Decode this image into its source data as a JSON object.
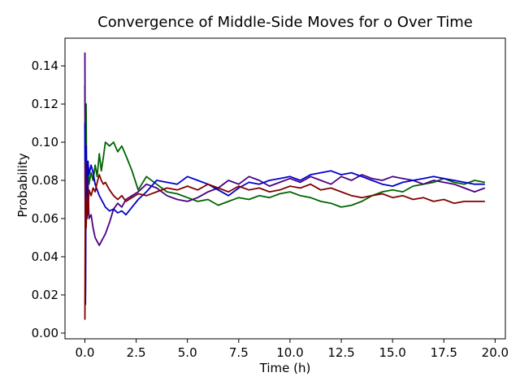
{
  "chart_data": {
    "type": "line",
    "title": "Convergence of Middle-Side Moves for o Over Time",
    "xlabel": "Time (h)",
    "ylabel": "Probability",
    "xlim": [
      -0.97,
      20.5
    ],
    "ylim": [
      -0.003,
      0.1545
    ],
    "xticks": [
      0.0,
      2.5,
      5.0,
      7.5,
      10.0,
      12.5,
      15.0,
      17.5,
      20.0
    ],
    "xtick_labels": [
      "0.0",
      "2.5",
      "5.0",
      "7.5",
      "10.0",
      "12.5",
      "15.0",
      "17.5",
      "20.0"
    ],
    "yticks": [
      0.0,
      0.02,
      0.04,
      0.06,
      0.08,
      0.1,
      0.12,
      0.14
    ],
    "ytick_labels": [
      "0.00",
      "0.02",
      "0.04",
      "0.06",
      "0.08",
      "0.10",
      "0.12",
      "0.14"
    ],
    "grid": false,
    "legend": "none",
    "series": [
      {
        "color": "#006400",
        "x": [
          0.0,
          0.03,
          0.06,
          0.1,
          0.15,
          0.2,
          0.3,
          0.4,
          0.5,
          0.6,
          0.7,
          0.8,
          0.9,
          1.0,
          1.2,
          1.4,
          1.6,
          1.8,
          2.0,
          2.3,
          2.6,
          3.0,
          3.5,
          4.0,
          4.5,
          5.0,
          5.5,
          6.0,
          6.5,
          7.0,
          7.5,
          8.0,
          8.5,
          9.0,
          9.5,
          10.0,
          10.5,
          11.0,
          11.5,
          12.0,
          12.5,
          13.0,
          13.5,
          14.0,
          14.5,
          15.0,
          15.5,
          16.0,
          16.5,
          17.0,
          17.5,
          18.0,
          18.5,
          19.0,
          19.5
        ],
        "y": [
          0.13,
          0.07,
          0.12,
          0.06,
          0.09,
          0.078,
          0.084,
          0.08,
          0.088,
          0.082,
          0.094,
          0.085,
          0.092,
          0.1,
          0.098,
          0.1,
          0.095,
          0.098,
          0.093,
          0.085,
          0.075,
          0.082,
          0.078,
          0.074,
          0.073,
          0.071,
          0.069,
          0.07,
          0.067,
          0.069,
          0.071,
          0.07,
          0.072,
          0.071,
          0.073,
          0.074,
          0.072,
          0.071,
          0.069,
          0.068,
          0.066,
          0.067,
          0.069,
          0.072,
          0.074,
          0.075,
          0.074,
          0.077,
          0.078,
          0.079,
          0.081,
          0.079,
          0.078,
          0.08,
          0.079
        ]
      },
      {
        "color": "#4B0082",
        "x": [
          0.0,
          0.03,
          0.06,
          0.1,
          0.15,
          0.2,
          0.3,
          0.4,
          0.5,
          0.6,
          0.7,
          0.8,
          0.9,
          1.0,
          1.2,
          1.4,
          1.6,
          1.8,
          2.0,
          2.3,
          2.6,
          3.0,
          3.5,
          4.0,
          4.5,
          5.0,
          5.5,
          6.0,
          6.5,
          7.0,
          7.5,
          8.0,
          8.5,
          9.0,
          9.5,
          10.0,
          10.5,
          11.0,
          11.5,
          12.0,
          12.5,
          13.0,
          13.5,
          14.0,
          14.5,
          15.0,
          15.5,
          16.0,
          16.5,
          17.0,
          17.5,
          18.0,
          18.5,
          19.0,
          19.5
        ],
        "y": [
          0.147,
          0.02,
          0.09,
          0.06,
          0.08,
          0.06,
          0.062,
          0.055,
          0.05,
          0.048,
          0.046,
          0.048,
          0.05,
          0.052,
          0.058,
          0.065,
          0.068,
          0.066,
          0.07,
          0.072,
          0.074,
          0.078,
          0.076,
          0.072,
          0.07,
          0.069,
          0.071,
          0.074,
          0.076,
          0.08,
          0.078,
          0.082,
          0.08,
          0.077,
          0.079,
          0.081,
          0.079,
          0.082,
          0.08,
          0.078,
          0.082,
          0.08,
          0.083,
          0.081,
          0.08,
          0.082,
          0.081,
          0.08,
          0.078,
          0.08,
          0.079,
          0.078,
          0.076,
          0.074,
          0.076
        ]
      },
      {
        "color": "#0000CD",
        "x": [
          0.0,
          0.03,
          0.06,
          0.1,
          0.15,
          0.2,
          0.3,
          0.4,
          0.5,
          0.6,
          0.7,
          0.8,
          0.9,
          1.0,
          1.2,
          1.4,
          1.6,
          1.8,
          2.0,
          2.3,
          2.6,
          3.0,
          3.5,
          4.0,
          4.5,
          5.0,
          5.5,
          6.0,
          6.5,
          7.0,
          7.5,
          8.0,
          8.5,
          9.0,
          9.5,
          10.0,
          10.5,
          11.0,
          11.5,
          12.0,
          12.5,
          13.0,
          13.5,
          14.0,
          14.5,
          15.0,
          15.5,
          16.0,
          16.5,
          17.0,
          17.5,
          18.0,
          18.5,
          19.0,
          19.5
        ],
        "y": [
          0.11,
          0.015,
          0.098,
          0.072,
          0.09,
          0.083,
          0.088,
          0.084,
          0.078,
          0.075,
          0.072,
          0.07,
          0.068,
          0.066,
          0.064,
          0.065,
          0.063,
          0.064,
          0.062,
          0.066,
          0.07,
          0.074,
          0.08,
          0.079,
          0.078,
          0.082,
          0.08,
          0.078,
          0.075,
          0.072,
          0.076,
          0.079,
          0.078,
          0.08,
          0.081,
          0.082,
          0.08,
          0.083,
          0.084,
          0.085,
          0.083,
          0.084,
          0.082,
          0.08,
          0.078,
          0.077,
          0.079,
          0.08,
          0.081,
          0.082,
          0.081,
          0.08,
          0.079,
          0.078,
          0.078
        ]
      },
      {
        "color": "#800000",
        "x": [
          0.0,
          0.03,
          0.06,
          0.1,
          0.15,
          0.2,
          0.3,
          0.4,
          0.5,
          0.6,
          0.7,
          0.8,
          0.9,
          1.0,
          1.2,
          1.4,
          1.6,
          1.8,
          2.0,
          2.3,
          2.6,
          3.0,
          3.5,
          4.0,
          4.5,
          5.0,
          5.5,
          6.0,
          6.5,
          7.0,
          7.5,
          8.0,
          8.5,
          9.0,
          9.5,
          10.0,
          10.5,
          11.0,
          11.5,
          12.0,
          12.5,
          13.0,
          13.5,
          14.0,
          14.5,
          15.0,
          15.5,
          16.0,
          16.5,
          17.0,
          17.5,
          18.0,
          18.5,
          19.0,
          19.5
        ],
        "y": [
          0.007,
          0.09,
          0.055,
          0.07,
          0.062,
          0.075,
          0.072,
          0.076,
          0.074,
          0.079,
          0.083,
          0.08,
          0.078,
          0.079,
          0.075,
          0.072,
          0.07,
          0.072,
          0.069,
          0.071,
          0.073,
          0.072,
          0.074,
          0.076,
          0.075,
          0.077,
          0.075,
          0.078,
          0.076,
          0.074,
          0.077,
          0.075,
          0.076,
          0.074,
          0.075,
          0.077,
          0.076,
          0.078,
          0.075,
          0.076,
          0.074,
          0.072,
          0.071,
          0.072,
          0.073,
          0.071,
          0.072,
          0.07,
          0.071,
          0.069,
          0.07,
          0.068,
          0.069,
          0.069,
          0.069
        ]
      }
    ]
  }
}
